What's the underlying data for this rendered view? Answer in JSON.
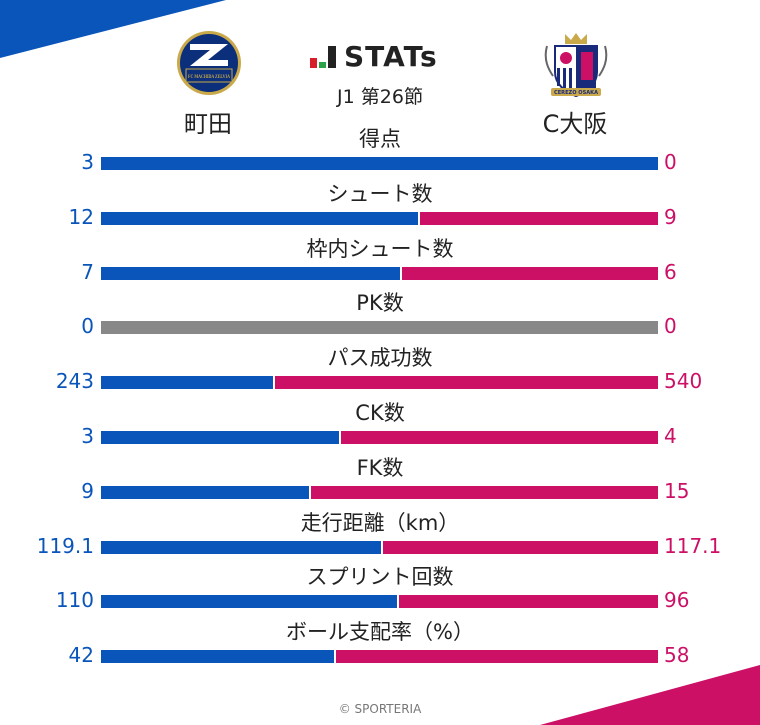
{
  "header": {
    "title": "STATs",
    "round": "J1 第26節",
    "home_team": "町田",
    "away_team": "C大阪",
    "home_logo_text": "FC MACHIDA ZELVIA",
    "away_logo_text": "CEREZO OSAKA"
  },
  "colors": {
    "home": "#0a55b9",
    "away": "#cc1066",
    "neutral": "#888888"
  },
  "chart_data": {
    "type": "bar",
    "categories": [
      "得点",
      "シュート数",
      "枠内シュート数",
      "PK数",
      "パス成功数",
      "CK数",
      "FK数",
      "走行距離（km）",
      "スプリント回数",
      "ボール支配率（%）"
    ],
    "series": [
      {
        "name": "町田",
        "values": [
          3,
          12,
          7,
          0,
          243,
          3,
          9,
          119.1,
          110,
          42
        ],
        "labels": [
          "3",
          "12",
          "7",
          "0",
          "243",
          "3",
          "9",
          "119.1",
          "110",
          "42"
        ]
      },
      {
        "name": "C大阪",
        "values": [
          0,
          9,
          6,
          0,
          540,
          4,
          15,
          117.1,
          96,
          58
        ],
        "labels": [
          "0",
          "9",
          "6",
          "0",
          "540",
          "4",
          "15",
          "117.1",
          "96",
          "58"
        ]
      }
    ]
  },
  "footer": "© SPORTERIA"
}
